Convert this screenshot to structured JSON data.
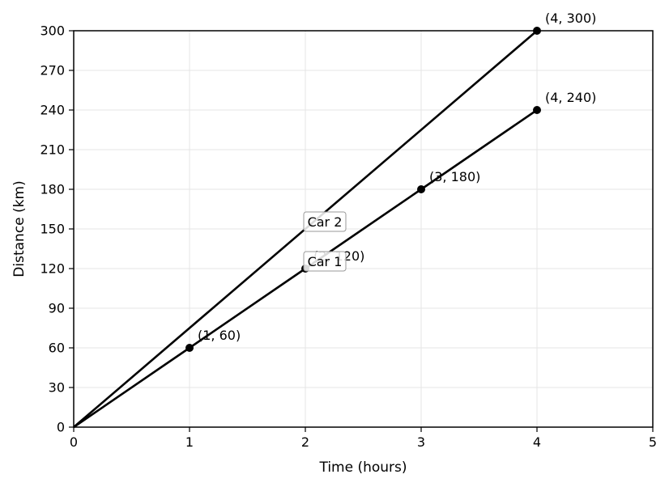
{
  "chart_data": {
    "type": "line",
    "title": "",
    "xlabel": "Time (hours)",
    "ylabel": "Distance (km)",
    "xlim": [
      0,
      5
    ],
    "ylim": [
      0,
      300
    ],
    "xticks": [
      0,
      1,
      2,
      3,
      4,
      5
    ],
    "yticks": [
      0,
      30,
      60,
      90,
      120,
      150,
      180,
      210,
      240,
      270,
      300
    ],
    "grid": true,
    "series": [
      {
        "name": "Car 1",
        "x": [
          0,
          1,
          2,
          3,
          4
        ],
        "y": [
          0,
          60,
          120,
          180,
          240
        ],
        "color": "#000000",
        "marked_points": [
          {
            "x": 1,
            "y": 60,
            "label": "(1, 60)"
          },
          {
            "x": 2,
            "y": 120,
            "label": "(2, 120)"
          },
          {
            "x": 3,
            "y": 180,
            "label": "(3, 180)"
          },
          {
            "x": 4,
            "y": 240,
            "label": "(4, 240)"
          }
        ],
        "label_at": [
          2,
          120
        ]
      },
      {
        "name": "Car 2",
        "x": [
          0,
          4
        ],
        "y": [
          0,
          300
        ],
        "color": "#000000",
        "marked_points": [
          {
            "x": 4,
            "y": 300,
            "label": "(4, 300)"
          }
        ],
        "label_at": [
          2,
          150
        ]
      }
    ]
  }
}
